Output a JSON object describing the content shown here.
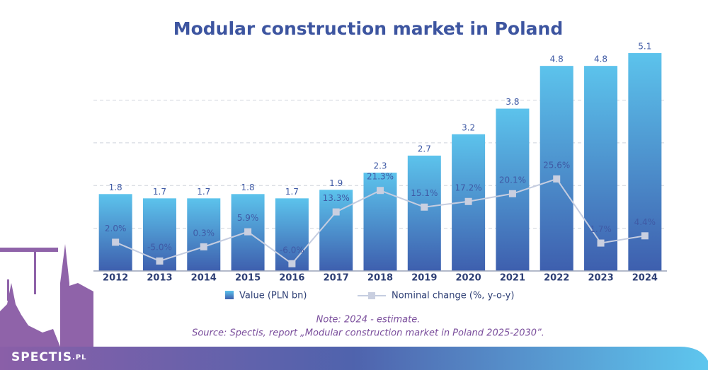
{
  "chart_data": {
    "type": "bar",
    "title": "Modular construction market in Poland",
    "categories": [
      "2012",
      "2013",
      "2014",
      "2015",
      "2016",
      "2017",
      "2018",
      "2019",
      "2020",
      "2021",
      "2022",
      "2023",
      "2024"
    ],
    "series": [
      {
        "name": "Value (PLN bn)",
        "color": "#5cc3ec",
        "values": [
          1.8,
          1.7,
          1.7,
          1.8,
          1.7,
          1.9,
          2.3,
          2.7,
          3.2,
          3.8,
          4.8,
          4.8,
          5.1
        ]
      },
      {
        "name": "Nominal change (%, y-o-y)",
        "color": "#c5cde0",
        "axis": "y2",
        "values": [
          2.0,
          -5.0,
          0.3,
          5.9,
          -6.0,
          13.3,
          21.3,
          15.1,
          17.2,
          20.1,
          25.6,
          1.7,
          4.4
        ],
        "value_labels": [
          "2.0%",
          "-5.0%",
          "0.3%",
          "5.9%",
          "-6.0%",
          "13.3%",
          "21.3%",
          "15.1%",
          "17.2%",
          "20.1%",
          "25.6%",
          "1.7%",
          "4.4%"
        ]
      }
    ],
    "ylim": [
      0,
      5.2
    ],
    "yticks": [
      1,
      2,
      3,
      4
    ],
    "grid": true,
    "y2lim": [
      -8.7,
      74.1
    ],
    "note": "Note: 2024 - estimate.",
    "source": "Source: Spectis, report „Modular construction market in Poland 2025-2030”.",
    "logo": "SPECTIS",
    "logo_suffix": ".PL"
  }
}
